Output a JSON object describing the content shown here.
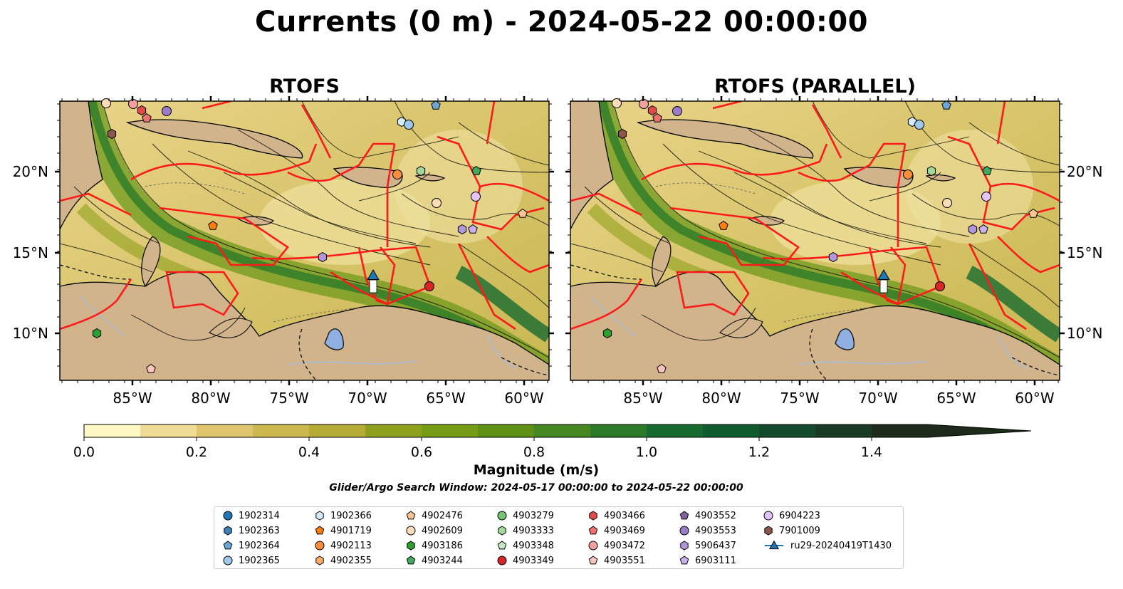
{
  "figure": {
    "title": "Currents (0 m) - 2024-05-22 00:00:00",
    "panels": [
      {
        "title": "RTOFS"
      },
      {
        "title": "RTOFS (PARALLEL)"
      }
    ],
    "lon_ticks": [
      "85°W",
      "80°W",
      "75°W",
      "70°W",
      "65°W",
      "60°W"
    ],
    "lat_ticks": [
      "20°N",
      "15°N",
      "10°N"
    ],
    "colorbar": {
      "label": "Magnitude (m/s)",
      "min": 0.0,
      "max": 1.5,
      "extend": "max",
      "ticks": [
        "0.0",
        "0.2",
        "0.4",
        "0.6",
        "0.8",
        "1.0",
        "1.2",
        "1.4"
      ],
      "colors": [
        "#fff8c4",
        "#efdd95",
        "#dfc66e",
        "#cdb84f",
        "#b5ab35",
        "#8fa01c",
        "#759c14",
        "#5e9016",
        "#458720",
        "#2c7a28",
        "#186b30",
        "#105c30",
        "#144a2c",
        "#193b24",
        "#1c2b1a"
      ]
    },
    "search_window": "Glider/Argo Search Window: 2024-05-17 00:00:00 to 2024-05-22 00:00:00",
    "colors": {
      "land": "#d2b48c",
      "boundaries": "#ff1a1a",
      "lakes": "#8fb0e0",
      "rivers": "#a6bddb"
    }
  },
  "legend": {
    "items": [
      {
        "label": "1902314",
        "marker": "circle",
        "color": "#1f77b4"
      },
      {
        "label": "1902363",
        "marker": "hexagon",
        "color": "#3f7fb8"
      },
      {
        "label": "1902364",
        "marker": "pentagon",
        "color": "#6aa6d6"
      },
      {
        "label": "1902365",
        "marker": "circle",
        "color": "#9ec9ea"
      },
      {
        "label": "1902366",
        "marker": "hexagon",
        "color": "#d4ecf8"
      },
      {
        "label": "4901719",
        "marker": "pentagon",
        "color": "#ff7f0e"
      },
      {
        "label": "4902113",
        "marker": "circle",
        "color": "#fd8d3c"
      },
      {
        "label": "4902355",
        "marker": "hexagon",
        "color": "#fdae6b"
      },
      {
        "label": "4902476",
        "marker": "pentagon",
        "color": "#fdc591"
      },
      {
        "label": "4902609",
        "marker": "circle",
        "color": "#fddcb8"
      },
      {
        "label": "4903186",
        "marker": "hexagon",
        "color": "#2ca02c"
      },
      {
        "label": "4903244",
        "marker": "pentagon",
        "color": "#41ab5d"
      },
      {
        "label": "4903279",
        "marker": "circle",
        "color": "#74c476"
      },
      {
        "label": "4903333",
        "marker": "hexagon",
        "color": "#a1d99b"
      },
      {
        "label": "4903348",
        "marker": "pentagon",
        "color": "#c7e9c0"
      },
      {
        "label": "4903349",
        "marker": "circle",
        "color": "#d62728"
      },
      {
        "label": "4903466",
        "marker": "hexagon",
        "color": "#e34a4a"
      },
      {
        "label": "4903469",
        "marker": "pentagon",
        "color": "#f07070"
      },
      {
        "label": "4903472",
        "marker": "circle",
        "color": "#f4a0a0"
      },
      {
        "label": "4903551",
        "marker": "pentagon",
        "color": "#fcc6c0"
      },
      {
        "label": "4903552",
        "marker": "pentagon",
        "color": "#8064a2"
      },
      {
        "label": "4903553",
        "marker": "circle",
        "color": "#9a7cc8"
      },
      {
        "label": "5906437",
        "marker": "hexagon",
        "color": "#b296dc"
      },
      {
        "label": "6903111",
        "marker": "pentagon",
        "color": "#c9b0ec"
      },
      {
        "label": "6904223",
        "marker": "circle",
        "color": "#e2c4f4"
      },
      {
        "label": "7901009",
        "marker": "hexagon",
        "color": "#8c564b"
      },
      {
        "label": "ru29-20240419T1430",
        "marker": "triangle-line",
        "color": "#1f77b4"
      }
    ]
  }
}
